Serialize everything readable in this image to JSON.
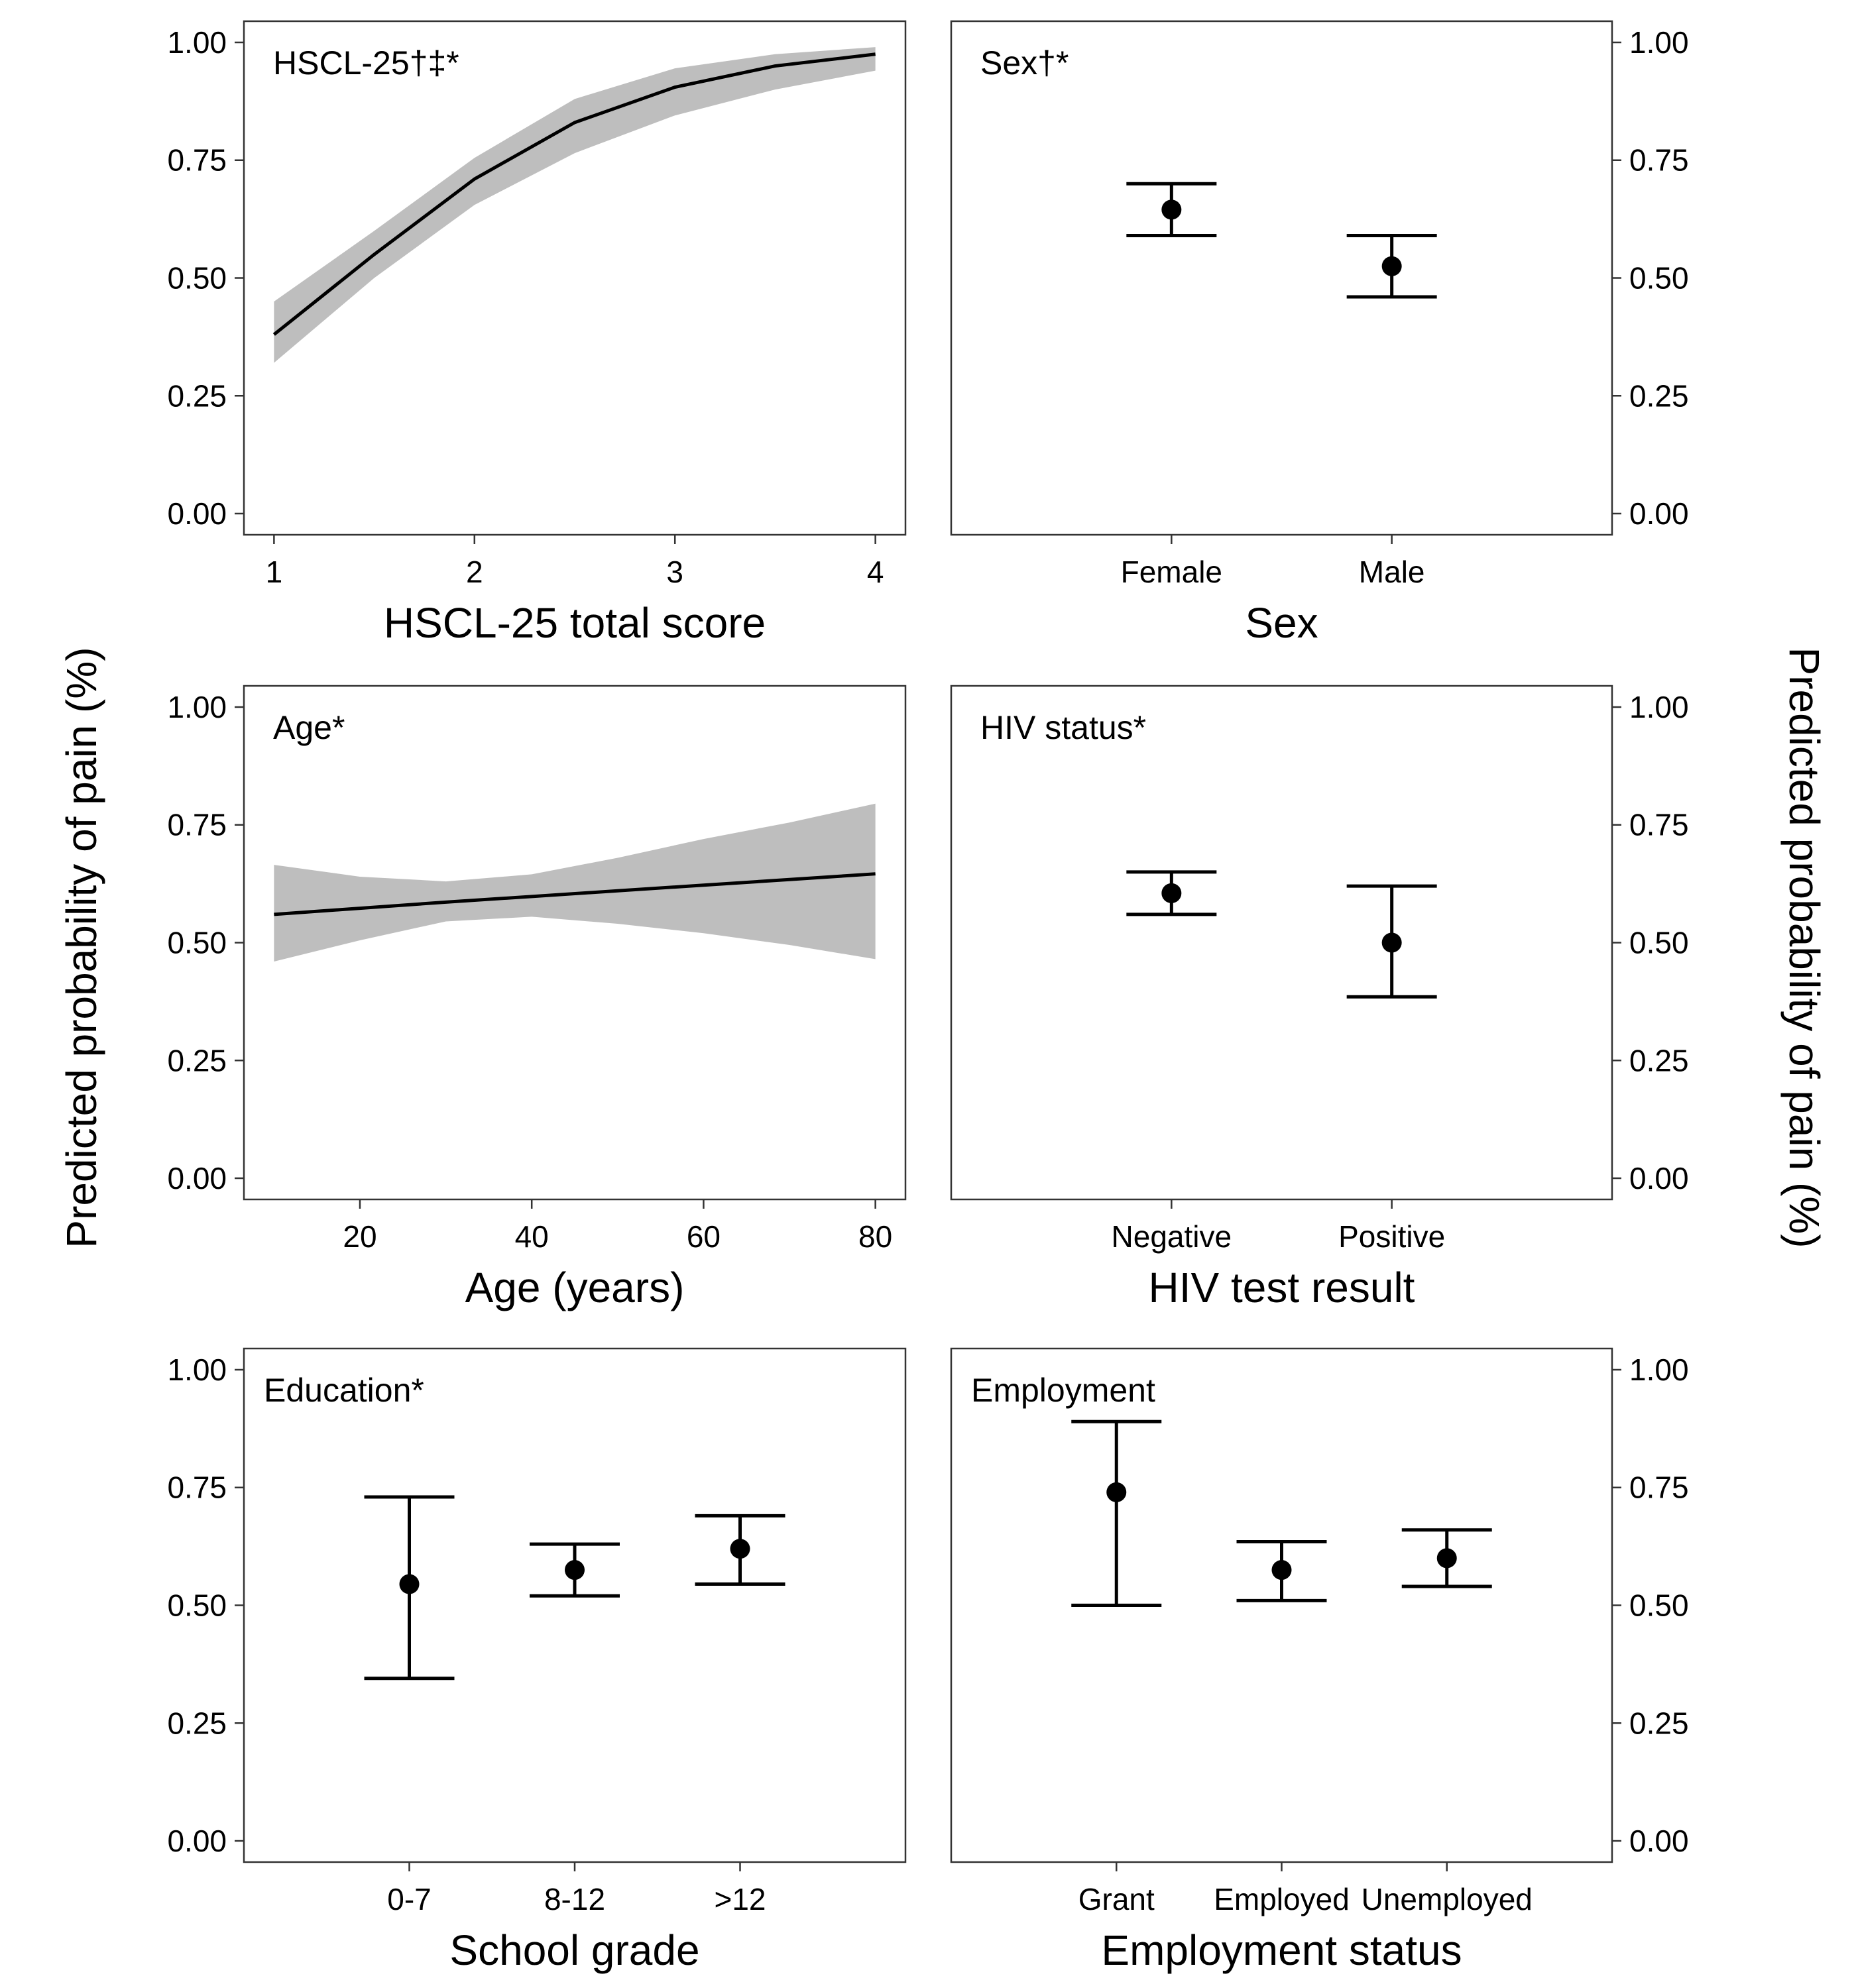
{
  "y_axis_label": "Predicted probability of pain (%)",
  "chart_data": [
    {
      "type": "line",
      "title": "HSCL-25†‡*",
      "xlabel": "HSCL-25 total score",
      "ylabel": "Predicted probability of pain (%)",
      "xlim": [
        0.85,
        4.15
      ],
      "ylim": [
        -0.045,
        1.045
      ],
      "xticks": [
        1,
        2,
        3,
        4
      ],
      "yticks": [
        0,
        0.25,
        0.5,
        0.75,
        1.0
      ],
      "ytick_labels": [
        "0.00",
        "0.25",
        "0.50",
        "0.75",
        "1.00"
      ],
      "y_axis_side": "left",
      "x": [
        1,
        1.5,
        2,
        2.5,
        3,
        3.5,
        4
      ],
      "y": [
        0.38,
        0.55,
        0.71,
        0.83,
        0.905,
        0.95,
        0.975
      ],
      "lower": [
        0.32,
        0.5,
        0.655,
        0.765,
        0.845,
        0.9,
        0.94
      ],
      "upper": [
        0.45,
        0.6,
        0.755,
        0.88,
        0.945,
        0.975,
        0.99
      ]
    },
    {
      "type": "errorbar",
      "title": "Sex†*",
      "xlabel": "Sex",
      "ylabel": "Predicted probability of pain (%)",
      "ylim": [
        -0.045,
        1.045
      ],
      "yticks": [
        0,
        0.25,
        0.5,
        0.75,
        1.0
      ],
      "ytick_labels": [
        "0.00",
        "0.25",
        "0.50",
        "0.75",
        "1.00"
      ],
      "y_axis_side": "right",
      "categories": [
        "Female",
        "Male"
      ],
      "values": [
        0.645,
        0.525
      ],
      "lower": [
        0.59,
        0.46
      ],
      "upper": [
        0.7,
        0.59
      ]
    },
    {
      "type": "line",
      "title": "Age*",
      "xlabel": "Age (years)",
      "ylabel": "Predicted probability of pain (%)",
      "xlim": [
        6.5,
        83.5
      ],
      "ylim": [
        -0.045,
        1.045
      ],
      "xticks": [
        20,
        40,
        60,
        80
      ],
      "yticks": [
        0,
        0.25,
        0.5,
        0.75,
        1.0
      ],
      "ytick_labels": [
        "0.00",
        "0.25",
        "0.50",
        "0.75",
        "1.00"
      ],
      "y_axis_side": "left",
      "x": [
        10,
        20,
        30,
        40,
        50,
        60,
        70,
        80
      ],
      "y": [
        0.56,
        0.573,
        0.586,
        0.598,
        0.61,
        0.622,
        0.634,
        0.646
      ],
      "lower": [
        0.46,
        0.505,
        0.545,
        0.555,
        0.54,
        0.52,
        0.495,
        0.465
      ],
      "upper": [
        0.665,
        0.64,
        0.63,
        0.645,
        0.68,
        0.72,
        0.755,
        0.795
      ]
    },
    {
      "type": "errorbar",
      "title": "HIV status*",
      "xlabel": "HIV test result",
      "ylabel": "Predicted probability of pain (%)",
      "ylim": [
        -0.045,
        1.045
      ],
      "yticks": [
        0,
        0.25,
        0.5,
        0.75,
        1.0
      ],
      "ytick_labels": [
        "0.00",
        "0.25",
        "0.50",
        "0.75",
        "1.00"
      ],
      "y_axis_side": "right",
      "categories": [
        "Negative",
        "Positive"
      ],
      "values": [
        0.605,
        0.5
      ],
      "lower": [
        0.56,
        0.385
      ],
      "upper": [
        0.65,
        0.62
      ]
    },
    {
      "type": "errorbar",
      "title": "Education*",
      "xlabel": "School grade",
      "ylabel": "Predicted probability of pain (%)",
      "ylim": [
        -0.045,
        1.045
      ],
      "yticks": [
        0,
        0.25,
        0.5,
        0.75,
        1.0
      ],
      "ytick_labels": [
        "0.00",
        "0.25",
        "0.50",
        "0.75",
        "1.00"
      ],
      "y_axis_side": "left",
      "categories": [
        "0-7",
        "8-12",
        ">12"
      ],
      "values": [
        0.545,
        0.575,
        0.62
      ],
      "lower": [
        0.345,
        0.52,
        0.545
      ],
      "upper": [
        0.73,
        0.63,
        0.69
      ]
    },
    {
      "type": "errorbar",
      "title": "Employment",
      "xlabel": "Employment status",
      "ylabel": "Predicted probability of pain (%)",
      "ylim": [
        -0.045,
        1.045
      ],
      "yticks": [
        0,
        0.25,
        0.5,
        0.75,
        1.0
      ],
      "ytick_labels": [
        "0.00",
        "0.25",
        "0.50",
        "0.75",
        "1.00"
      ],
      "y_axis_side": "right",
      "categories": [
        "Grant",
        "Employed",
        "Unemployed"
      ],
      "values": [
        0.74,
        0.575,
        0.6
      ],
      "lower": [
        0.5,
        0.51,
        0.54
      ],
      "upper": [
        0.89,
        0.635,
        0.66
      ]
    }
  ]
}
